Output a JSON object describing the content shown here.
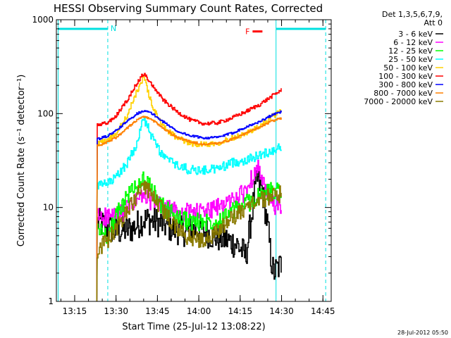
{
  "chart_data": {
    "type": "line",
    "title": "HESSI Observing Summary Count Rates, Corrected",
    "xlabel": "Start Time (25-Jul-12 13:08:22)",
    "ylabel": "Corrected Count Rate (s⁻¹ detector⁻¹)",
    "y_scale": "log",
    "ylim": [
      1,
      1000
    ],
    "xlim": [
      "13:08:22",
      "14:48"
    ],
    "x_ticks": [
      "13:15",
      "13:30",
      "13:45",
      "14:00",
      "14:15",
      "14:30",
      "14:45"
    ],
    "y_ticks": [
      "1",
      "10",
      "100",
      "1000"
    ],
    "grid": false,
    "legend_position": "right",
    "legend_header": [
      "Det 1,3,5,6,7,9,",
      "Att 0"
    ],
    "data_start": "13:23:00",
    "data_end": "14:30:00",
    "series": [
      {
        "name": "3 - 6 keV",
        "color": "#000000",
        "points": [
          [
            "13:23",
            7
          ],
          [
            "13:30",
            5.5
          ],
          [
            "13:36",
            6
          ],
          [
            "13:40",
            7.5
          ],
          [
            "13:45",
            7
          ],
          [
            "13:50",
            6
          ],
          [
            "13:55",
            5.5
          ],
          [
            "14:00",
            6
          ],
          [
            "14:05",
            5
          ],
          [
            "14:10",
            4.5
          ],
          [
            "14:14",
            4
          ],
          [
            "14:17",
            3
          ],
          [
            "14:19",
            8
          ],
          [
            "14:21",
            20
          ],
          [
            "14:23",
            15
          ],
          [
            "14:25",
            6
          ],
          [
            "14:26",
            3
          ],
          [
            "14:27",
            2
          ],
          [
            "14:30",
            2.5
          ]
        ]
      },
      {
        "name": "6 - 12 keV",
        "color": "#ff00ff",
        "points": [
          [
            "13:23",
            8
          ],
          [
            "13:30",
            8
          ],
          [
            "13:35",
            10
          ],
          [
            "13:39",
            13
          ],
          [
            "13:42",
            12
          ],
          [
            "13:47",
            10
          ],
          [
            "13:52",
            9
          ],
          [
            "13:57",
            9
          ],
          [
            "14:02",
            9
          ],
          [
            "14:07",
            10
          ],
          [
            "14:12",
            12
          ],
          [
            "14:16",
            14
          ],
          [
            "14:19",
            20
          ],
          [
            "14:21",
            30
          ],
          [
            "14:23",
            18
          ],
          [
            "14:26",
            11
          ],
          [
            "14:30",
            10
          ]
        ]
      },
      {
        "name": "12 - 25 keV",
        "color": "#00ff00",
        "points": [
          [
            "13:23",
            6
          ],
          [
            "13:27",
            5
          ],
          [
            "13:30",
            8
          ],
          [
            "13:33",
            12
          ],
          [
            "13:37",
            17
          ],
          [
            "13:40",
            20
          ],
          [
            "13:43",
            15
          ],
          [
            "13:47",
            10
          ],
          [
            "13:52",
            8
          ],
          [
            "13:57",
            7
          ],
          [
            "14:02",
            7
          ],
          [
            "14:07",
            7.5
          ],
          [
            "14:12",
            9
          ],
          [
            "14:17",
            11
          ],
          [
            "14:22",
            13
          ],
          [
            "14:26",
            15
          ],
          [
            "14:30",
            16
          ]
        ]
      },
      {
        "name": "25 - 50 keV",
        "color": "#00ffff",
        "points": [
          [
            "13:23",
            17
          ],
          [
            "13:27",
            18
          ],
          [
            "13:30",
            21
          ],
          [
            "13:34",
            30
          ],
          [
            "13:37",
            45
          ],
          [
            "13:40",
            90
          ],
          [
            "13:43",
            55
          ],
          [
            "13:47",
            35
          ],
          [
            "13:52",
            28
          ],
          [
            "13:57",
            25
          ],
          [
            "14:02",
            25
          ],
          [
            "14:07",
            26
          ],
          [
            "14:12",
            30
          ],
          [
            "14:17",
            32
          ],
          [
            "14:22",
            36
          ],
          [
            "14:26",
            40
          ],
          [
            "14:30",
            45
          ]
        ]
      },
      {
        "name": "50 - 100 keV",
        "color": "#ffd000",
        "points": [
          [
            "13:23",
            48
          ],
          [
            "13:27",
            52
          ],
          [
            "13:30",
            62
          ],
          [
            "13:34",
            95
          ],
          [
            "13:37",
            160
          ],
          [
            "13:40",
            250
          ],
          [
            "13:43",
            120
          ],
          [
            "13:47",
            72
          ],
          [
            "13:52",
            55
          ],
          [
            "13:57",
            48
          ],
          [
            "14:02",
            47
          ],
          [
            "14:07",
            49
          ],
          [
            "14:12",
            55
          ],
          [
            "14:17",
            62
          ],
          [
            "14:22",
            72
          ],
          [
            "14:26",
            90
          ],
          [
            "14:30",
            110
          ]
        ]
      },
      {
        "name": "100 - 300 keV",
        "color": "#ff0000",
        "points": [
          [
            "13:23",
            75
          ],
          [
            "13:27",
            80
          ],
          [
            "13:30",
            95
          ],
          [
            "13:34",
            140
          ],
          [
            "13:37",
            200
          ],
          [
            "13:40",
            270
          ],
          [
            "13:43",
            200
          ],
          [
            "13:47",
            140
          ],
          [
            "13:52",
            105
          ],
          [
            "13:57",
            85
          ],
          [
            "14:02",
            78
          ],
          [
            "14:07",
            80
          ],
          [
            "14:12",
            90
          ],
          [
            "14:17",
            105
          ],
          [
            "14:22",
            125
          ],
          [
            "14:26",
            150
          ],
          [
            "14:30",
            180
          ]
        ]
      },
      {
        "name": "300 - 800 keV",
        "color": "#0000ff",
        "points": [
          [
            "13:23",
            53
          ],
          [
            "13:27",
            58
          ],
          [
            "13:30",
            66
          ],
          [
            "13:34",
            83
          ],
          [
            "13:37",
            98
          ],
          [
            "13:40",
            108
          ],
          [
            "13:43",
            100
          ],
          [
            "13:47",
            82
          ],
          [
            "13:52",
            65
          ],
          [
            "13:57",
            58
          ],
          [
            "14:02",
            55
          ],
          [
            "14:07",
            56
          ],
          [
            "14:12",
            62
          ],
          [
            "14:17",
            72
          ],
          [
            "14:22",
            82
          ],
          [
            "14:26",
            95
          ],
          [
            "14:30",
            105
          ]
        ]
      },
      {
        "name": "800 - 7000 keV",
        "color": "#ff8000",
        "points": [
          [
            "13:23",
            45
          ],
          [
            "13:27",
            50
          ],
          [
            "13:30",
            56
          ],
          [
            "13:34",
            70
          ],
          [
            "13:37",
            84
          ],
          [
            "13:40",
            93
          ],
          [
            "13:43",
            86
          ],
          [
            "13:47",
            70
          ],
          [
            "13:52",
            56
          ],
          [
            "13:57",
            50
          ],
          [
            "14:02",
            47
          ],
          [
            "14:07",
            48
          ],
          [
            "14:12",
            53
          ],
          [
            "14:17",
            62
          ],
          [
            "14:22",
            72
          ],
          [
            "14:26",
            82
          ],
          [
            "14:30",
            90
          ]
        ]
      },
      {
        "name": "7000 - 20000 keV",
        "color": "#8a7a00",
        "points": [
          [
            "13:23",
            3.5
          ],
          [
            "13:27",
            4.5
          ],
          [
            "13:30",
            6
          ],
          [
            "13:34",
            9
          ],
          [
            "13:38",
            14
          ],
          [
            "13:41",
            16
          ],
          [
            "13:45",
            11
          ],
          [
            "13:50",
            7
          ],
          [
            "13:55",
            5
          ],
          [
            "14:00",
            4.5
          ],
          [
            "14:05",
            5
          ],
          [
            "14:10",
            7
          ],
          [
            "14:15",
            9
          ],
          [
            "14:20",
            11
          ],
          [
            "14:25",
            13
          ],
          [
            "14:30",
            14
          ]
        ]
      }
    ],
    "vertical_markers": [
      {
        "time": "13:09",
        "style": "solid",
        "color": "#00e0e0"
      },
      {
        "time": "13:27",
        "style": "dashed",
        "color": "#00e0e0"
      },
      {
        "time": "14:28",
        "style": "solid",
        "color": "#00e0e0"
      },
      {
        "time": "14:46",
        "style": "dashed",
        "color": "#00e0e0"
      }
    ],
    "night_bars": [
      {
        "from": "13:09",
        "to": "13:27",
        "color": "#00e0e0"
      },
      {
        "from": "14:28",
        "to": "14:46",
        "color": "#00e0e0"
      }
    ],
    "annotations": [
      {
        "text": "N",
        "time": "13:27",
        "color": "#00e0e0"
      },
      {
        "text": "F",
        "time": "14:20",
        "color": "#ff0000",
        "y": 750
      }
    ],
    "footer_text": "28-Jul-2012 05:50"
  }
}
